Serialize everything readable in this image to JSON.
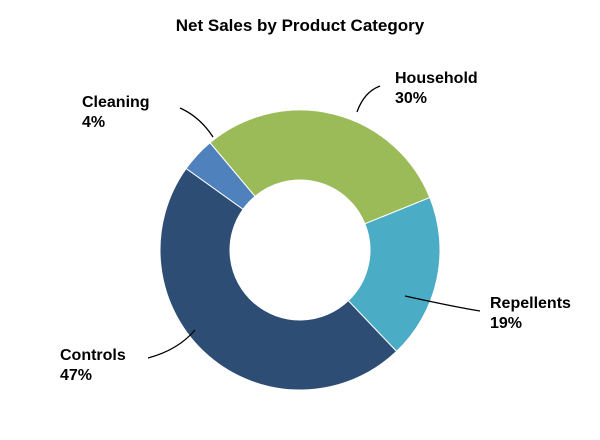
{
  "chart_data": {
    "type": "pie",
    "variant": "donut",
    "title": "Net Sales by Product Category",
    "categories": [
      "Household",
      "Repellents",
      "Controls",
      "Cleaning"
    ],
    "values": [
      30,
      19,
      47,
      4
    ],
    "labels": [
      {
        "name": "Household",
        "value": "30%"
      },
      {
        "name": "Repellents",
        "value": "19%"
      },
      {
        "name": "Controls",
        "value": "47%"
      },
      {
        "name": "Cleaning",
        "value": "4%"
      }
    ],
    "colors": [
      "#9BBB59",
      "#4BACC6",
      "#2E4D75",
      "#4F81BD"
    ],
    "legend": "none"
  }
}
